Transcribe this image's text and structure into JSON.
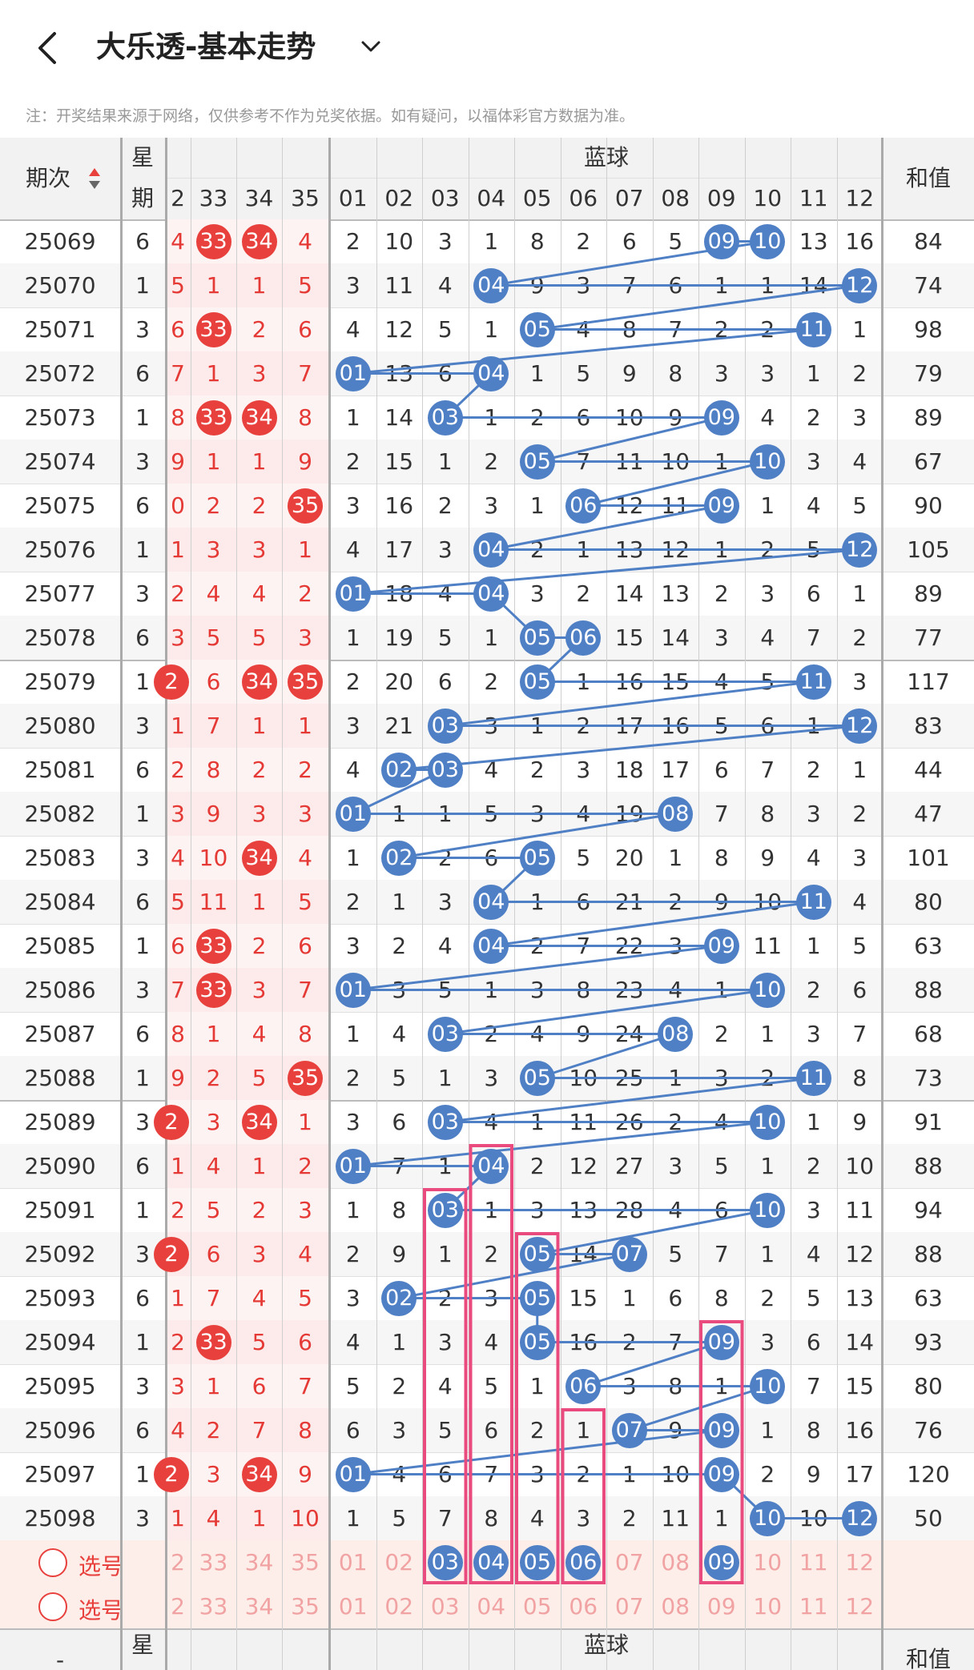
{
  "header": {
    "title": "大乐透-基本走势"
  },
  "notice": "注：开奖结果来源于网络，仅供参考不作为兑奖依据。如有疑问，以福体彩官方数据为准。",
  "table": {
    "period_header": "期次",
    "week_header_top": "星",
    "week_header_bottom": "期",
    "blue_header": "蓝球",
    "sum_header": "和值",
    "front_cols": [
      "2",
      "33",
      "34",
      "35"
    ],
    "blue_cols": [
      "01",
      "02",
      "03",
      "04",
      "05",
      "06",
      "07",
      "08",
      "09",
      "10",
      "11",
      "12"
    ],
    "rows": [
      {
        "p": "25069",
        "w": "6",
        "f": [
          "4",
          "33",
          "34",
          "4"
        ],
        "fh": [
          0,
          1,
          1,
          0
        ],
        "b": [
          2,
          10,
          3,
          1,
          8,
          2,
          6,
          5,
          0,
          0,
          13,
          16
        ],
        "bh": [
          9,
          10
        ],
        "s": "84"
      },
      {
        "p": "25070",
        "w": "1",
        "f": [
          "5",
          "1",
          "1",
          "5"
        ],
        "fh": [
          0,
          0,
          0,
          0
        ],
        "b": [
          3,
          11,
          4,
          0,
          9,
          3,
          7,
          6,
          1,
          1,
          14,
          0
        ],
        "bh": [
          4,
          12
        ],
        "s": "74"
      },
      {
        "p": "25071",
        "w": "3",
        "f": [
          "6",
          "33",
          "2",
          "6"
        ],
        "fh": [
          0,
          1,
          0,
          0
        ],
        "b": [
          4,
          12,
          5,
          1,
          0,
          4,
          8,
          7,
          2,
          2,
          0,
          1
        ],
        "bh": [
          5,
          11
        ],
        "s": "98"
      },
      {
        "p": "25072",
        "w": "6",
        "f": [
          "7",
          "1",
          "3",
          "7"
        ],
        "fh": [
          0,
          0,
          0,
          0
        ],
        "b": [
          0,
          13,
          6,
          0,
          1,
          5,
          9,
          8,
          3,
          3,
          1,
          2
        ],
        "bh": [
          1,
          4
        ],
        "s": "79"
      },
      {
        "p": "25073",
        "w": "1",
        "f": [
          "8",
          "33",
          "34",
          "8"
        ],
        "fh": [
          0,
          1,
          1,
          0
        ],
        "b": [
          1,
          14,
          0,
          1,
          2,
          6,
          10,
          9,
          0,
          4,
          2,
          3
        ],
        "bh": [
          3,
          9
        ],
        "s": "89"
      },
      {
        "p": "25074",
        "w": "3",
        "f": [
          "9",
          "1",
          "1",
          "9"
        ],
        "fh": [
          0,
          0,
          0,
          0
        ],
        "b": [
          2,
          15,
          1,
          2,
          0,
          7,
          11,
          10,
          1,
          0,
          3,
          4
        ],
        "bh": [
          5,
          10
        ],
        "s": "67"
      },
      {
        "p": "25075",
        "w": "6",
        "f": [
          "0",
          "2",
          "2",
          "35"
        ],
        "fh": [
          0,
          0,
          0,
          1
        ],
        "b": [
          3,
          16,
          2,
          3,
          1,
          0,
          12,
          11,
          0,
          1,
          4,
          5
        ],
        "bh": [
          6,
          9
        ],
        "s": "90"
      },
      {
        "p": "25076",
        "w": "1",
        "f": [
          "1",
          "3",
          "3",
          "1"
        ],
        "fh": [
          0,
          0,
          0,
          0
        ],
        "b": [
          4,
          17,
          3,
          0,
          2,
          1,
          13,
          12,
          1,
          2,
          5,
          0
        ],
        "bh": [
          4,
          12
        ],
        "s": "105"
      },
      {
        "p": "25077",
        "w": "3",
        "f": [
          "2",
          "4",
          "4",
          "2"
        ],
        "fh": [
          0,
          0,
          0,
          0
        ],
        "b": [
          0,
          18,
          4,
          0,
          3,
          2,
          14,
          13,
          2,
          3,
          6,
          1
        ],
        "bh": [
          1,
          4
        ],
        "s": "89"
      },
      {
        "p": "25078",
        "w": "6",
        "f": [
          "3",
          "5",
          "5",
          "3"
        ],
        "fh": [
          0,
          0,
          0,
          0
        ],
        "b": [
          1,
          19,
          5,
          1,
          0,
          0,
          15,
          14,
          3,
          4,
          7,
          2
        ],
        "bh": [
          5,
          6
        ],
        "s": "77"
      },
      {
        "p": "25079",
        "w": "1",
        "f": [
          "2",
          "6",
          "34",
          "35"
        ],
        "fh": [
          1,
          0,
          1,
          1
        ],
        "b": [
          2,
          20,
          6,
          2,
          0,
          1,
          16,
          15,
          4,
          5,
          0,
          3
        ],
        "bh": [
          5,
          11
        ],
        "s": "117"
      },
      {
        "p": "25080",
        "w": "3",
        "f": [
          "1",
          "7",
          "1",
          "1"
        ],
        "fh": [
          0,
          0,
          0,
          0
        ],
        "b": [
          3,
          21,
          0,
          3,
          1,
          2,
          17,
          16,
          5,
          6,
          1,
          0
        ],
        "bh": [
          3,
          12
        ],
        "s": "83"
      },
      {
        "p": "25081",
        "w": "6",
        "f": [
          "2",
          "8",
          "2",
          "2"
        ],
        "fh": [
          0,
          0,
          0,
          0
        ],
        "b": [
          4,
          0,
          0,
          4,
          2,
          3,
          18,
          17,
          6,
          7,
          2,
          1
        ],
        "bh": [
          2,
          3
        ],
        "s": "44"
      },
      {
        "p": "25082",
        "w": "1",
        "f": [
          "3",
          "9",
          "3",
          "3"
        ],
        "fh": [
          0,
          0,
          0,
          0
        ],
        "b": [
          0,
          1,
          1,
          5,
          3,
          4,
          19,
          0,
          7,
          8,
          3,
          2
        ],
        "bh": [
          1,
          8
        ],
        "s": "47"
      },
      {
        "p": "25083",
        "w": "3",
        "f": [
          "4",
          "10",
          "34",
          "4"
        ],
        "fh": [
          0,
          0,
          1,
          0
        ],
        "b": [
          1,
          0,
          2,
          6,
          0,
          5,
          20,
          1,
          8,
          9,
          4,
          3
        ],
        "bh": [
          2,
          5
        ],
        "s": "101"
      },
      {
        "p": "25084",
        "w": "6",
        "f": [
          "5",
          "11",
          "1",
          "5"
        ],
        "fh": [
          0,
          0,
          0,
          0
        ],
        "b": [
          2,
          1,
          3,
          0,
          1,
          6,
          21,
          2,
          9,
          10,
          0,
          4
        ],
        "bh": [
          4,
          11
        ],
        "s": "80"
      },
      {
        "p": "25085",
        "w": "1",
        "f": [
          "6",
          "33",
          "2",
          "6"
        ],
        "fh": [
          0,
          1,
          0,
          0
        ],
        "b": [
          3,
          2,
          4,
          0,
          2,
          7,
          22,
          3,
          0,
          11,
          1,
          5
        ],
        "bh": [
          4,
          9
        ],
        "s": "63"
      },
      {
        "p": "25086",
        "w": "3",
        "f": [
          "7",
          "33",
          "3",
          "7"
        ],
        "fh": [
          0,
          1,
          0,
          0
        ],
        "b": [
          0,
          3,
          5,
          1,
          3,
          8,
          23,
          4,
          1,
          0,
          2,
          6
        ],
        "bh": [
          1,
          10
        ],
        "s": "88"
      },
      {
        "p": "25087",
        "w": "6",
        "f": [
          "8",
          "1",
          "4",
          "8"
        ],
        "fh": [
          0,
          0,
          0,
          0
        ],
        "b": [
          1,
          4,
          0,
          2,
          4,
          9,
          24,
          0,
          2,
          1,
          3,
          7
        ],
        "bh": [
          3,
          8
        ],
        "s": "68"
      },
      {
        "p": "25088",
        "w": "1",
        "f": [
          "9",
          "2",
          "5",
          "35"
        ],
        "fh": [
          0,
          0,
          0,
          1
        ],
        "b": [
          2,
          5,
          1,
          3,
          0,
          10,
          25,
          1,
          3,
          2,
          0,
          8
        ],
        "bh": [
          5,
          11
        ],
        "s": "73"
      },
      {
        "p": "25089",
        "w": "3",
        "f": [
          "2",
          "3",
          "34",
          "1"
        ],
        "fh": [
          1,
          0,
          1,
          0
        ],
        "b": [
          3,
          6,
          0,
          4,
          1,
          11,
          26,
          2,
          4,
          0,
          1,
          9
        ],
        "bh": [
          3,
          10
        ],
        "s": "91"
      },
      {
        "p": "25090",
        "w": "6",
        "f": [
          "1",
          "4",
          "1",
          "2"
        ],
        "fh": [
          0,
          0,
          0,
          0
        ],
        "b": [
          0,
          7,
          1,
          0,
          2,
          12,
          27,
          3,
          5,
          1,
          2,
          10
        ],
        "bh": [
          1,
          4
        ],
        "s": "88"
      },
      {
        "p": "25091",
        "w": "1",
        "f": [
          "2",
          "5",
          "2",
          "3"
        ],
        "fh": [
          0,
          0,
          0,
          0
        ],
        "b": [
          1,
          8,
          0,
          1,
          3,
          13,
          28,
          4,
          6,
          0,
          3,
          11
        ],
        "bh": [
          3,
          10
        ],
        "s": "94"
      },
      {
        "p": "25092",
        "w": "3",
        "f": [
          "2",
          "6",
          "3",
          "4"
        ],
        "fh": [
          1,
          0,
          0,
          0
        ],
        "b": [
          2,
          9,
          1,
          2,
          0,
          14,
          0,
          5,
          7,
          1,
          4,
          12
        ],
        "bh": [
          5,
          7
        ],
        "s": "88"
      },
      {
        "p": "25093",
        "w": "6",
        "f": [
          "1",
          "7",
          "4",
          "5"
        ],
        "fh": [
          0,
          0,
          0,
          0
        ],
        "b": [
          3,
          0,
          2,
          3,
          0,
          15,
          1,
          6,
          8,
          2,
          5,
          13
        ],
        "bh": [
          2,
          5
        ],
        "s": "63"
      },
      {
        "p": "25094",
        "w": "1",
        "f": [
          "2",
          "33",
          "5",
          "6"
        ],
        "fh": [
          0,
          1,
          0,
          0
        ],
        "b": [
          4,
          1,
          3,
          4,
          0,
          16,
          2,
          7,
          0,
          3,
          6,
          14
        ],
        "bh": [
          5,
          9
        ],
        "s": "93"
      },
      {
        "p": "25095",
        "w": "3",
        "f": [
          "3",
          "1",
          "6",
          "7"
        ],
        "fh": [
          0,
          0,
          0,
          0
        ],
        "b": [
          5,
          2,
          4,
          5,
          1,
          0,
          3,
          8,
          1,
          0,
          7,
          15
        ],
        "bh": [
          6,
          10
        ],
        "s": "80"
      },
      {
        "p": "25096",
        "w": "6",
        "f": [
          "4",
          "2",
          "7",
          "8"
        ],
        "fh": [
          0,
          0,
          0,
          0
        ],
        "b": [
          6,
          3,
          5,
          6,
          2,
          1,
          0,
          9,
          0,
          1,
          8,
          16
        ],
        "bh": [
          7,
          9
        ],
        "s": "76"
      },
      {
        "p": "25097",
        "w": "1",
        "f": [
          "2",
          "3",
          "34",
          "9"
        ],
        "fh": [
          1,
          0,
          1,
          0
        ],
        "b": [
          0,
          4,
          6,
          7,
          3,
          2,
          1,
          10,
          0,
          2,
          9,
          17
        ],
        "bh": [
          1,
          9
        ],
        "s": "120"
      },
      {
        "p": "25098",
        "w": "3",
        "f": [
          "1",
          "4",
          "1",
          "10"
        ],
        "fh": [
          0,
          0,
          0,
          0
        ],
        "b": [
          1,
          5,
          7,
          8,
          4,
          3,
          2,
          11,
          1,
          0,
          10,
          0
        ],
        "bh": [
          10,
          12
        ],
        "s": "50"
      }
    ],
    "pick_label": "选号",
    "pick_rows": [
      {
        "front": [
          "2",
          "33",
          "34",
          "35"
        ],
        "blue_sel": [
          3,
          4,
          5,
          6,
          9
        ]
      },
      {
        "front": [
          "2",
          "33",
          "34",
          "35"
        ],
        "blue_sel": []
      }
    ],
    "footer_week_top": "星",
    "footer_blue_header": "蓝球",
    "footer_sum_header": "和值",
    "footer_period_fragment": "-"
  },
  "colors": {
    "red_ball": "#e8403c",
    "blue_ball": "#4f7fc4",
    "highlight_box": "#e94b7e",
    "pick_bg": "#fdeee9"
  }
}
